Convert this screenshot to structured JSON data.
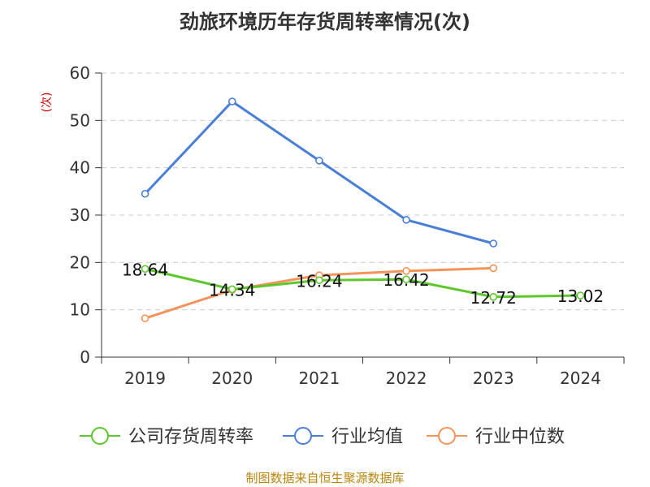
{
  "chart_data": {
    "type": "line",
    "title": "劲旅环境历年存货周转率情况(次)",
    "ylabel": "(次)",
    "categories": [
      "2019",
      "2020",
      "2021",
      "2022",
      "2023",
      "2024"
    ],
    "ylim": [
      0,
      60
    ],
    "yticks": [
      0,
      10,
      20,
      30,
      40,
      50,
      60
    ],
    "grid": true,
    "legend_position": "bottom",
    "series": [
      {
        "name": "公司存货周转率",
        "color": "#5ec72e",
        "values": [
          18.64,
          14.34,
          16.24,
          16.42,
          12.72,
          13.02
        ],
        "labels": [
          "18.64",
          "14.34",
          "16.24",
          "16.42",
          "12.72",
          "13.02"
        ]
      },
      {
        "name": "行业均值",
        "color": "#4a7fd6",
        "values": [
          34.5,
          54.0,
          41.5,
          29.0,
          24.0,
          null
        ]
      },
      {
        "name": "行业中位数",
        "color": "#f4935a",
        "values": [
          8.2,
          14.2,
          17.3,
          18.2,
          18.8,
          null
        ]
      }
    ]
  },
  "footer": {
    "source": "制图数据来自恒生聚源数据库"
  }
}
